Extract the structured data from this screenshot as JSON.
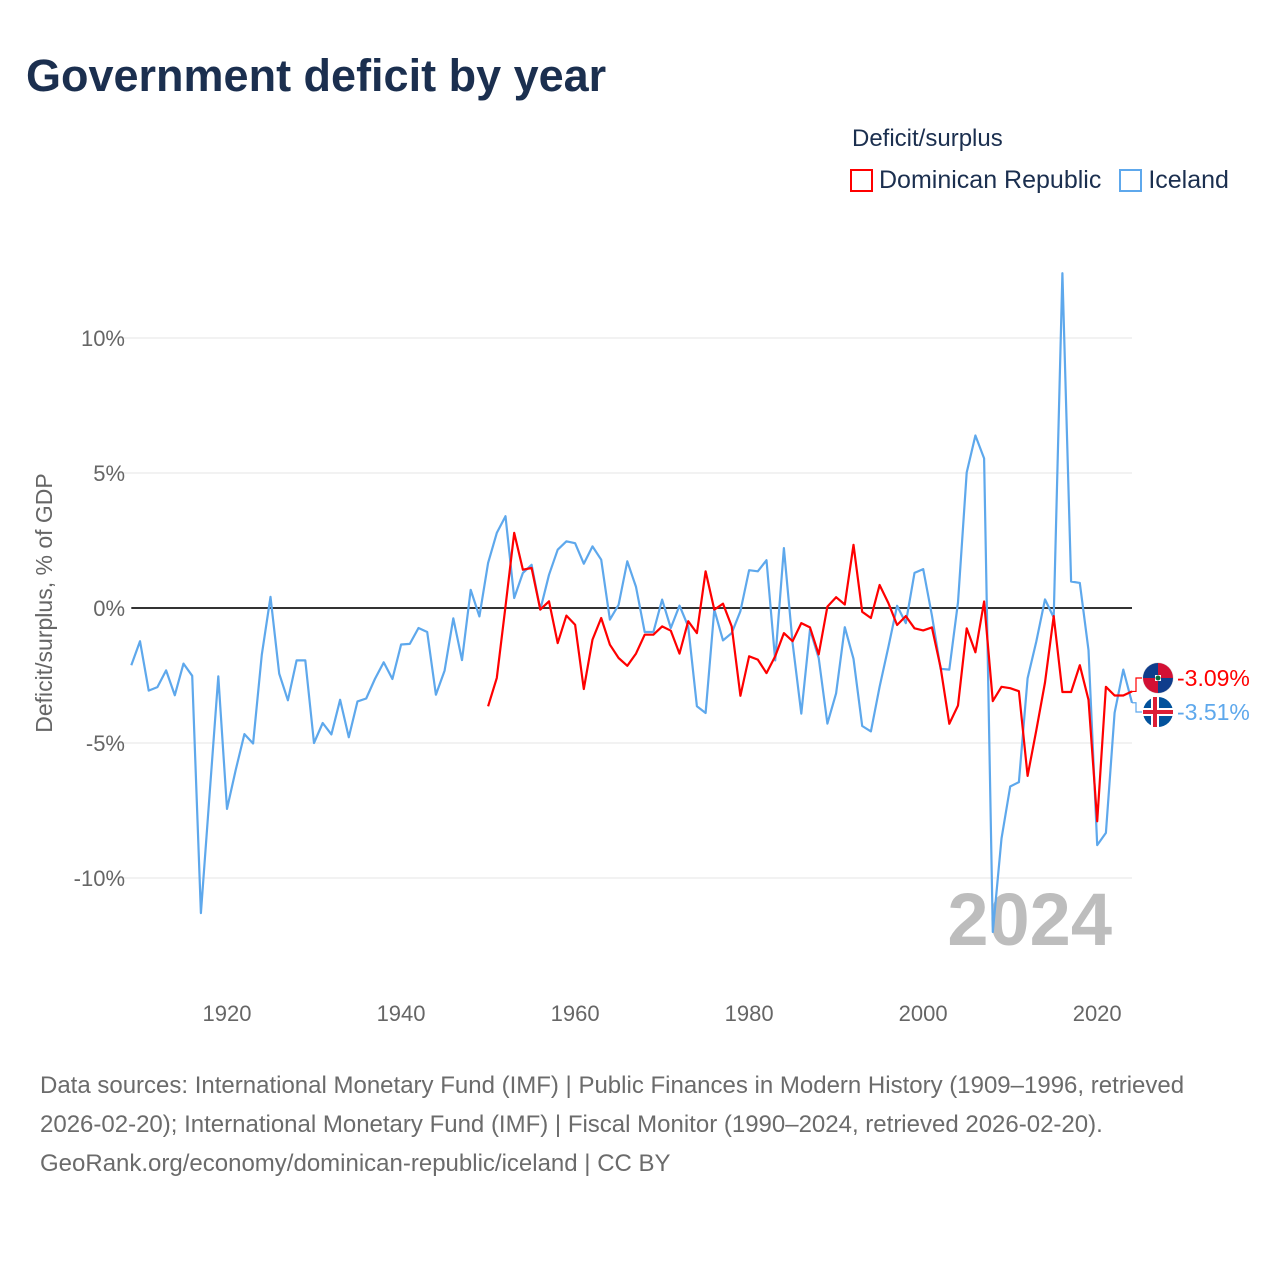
{
  "chart_data": {
    "type": "line",
    "title": "Government deficit by year",
    "xlabel": "",
    "ylabel": "Deficit/surplus, % of GDP",
    "xlim": [
      1909,
      2024
    ],
    "ylim": [
      -12.7,
      12.6
    ],
    "x_ticks": [
      1920,
      1940,
      1960,
      1980,
      2000,
      2020
    ],
    "x_tick_labels": [
      "1920",
      "1940",
      "1960",
      "1980",
      "2000",
      "2020"
    ],
    "y_ticks": [
      10,
      5,
      0,
      -5,
      -10
    ],
    "y_tick_labels": [
      "10%",
      "5%",
      "0%",
      "-5%",
      "-10%"
    ],
    "grid": true,
    "legend_title": "Deficit/surplus",
    "legend_position": "top-right",
    "year_watermark": "2024",
    "series": [
      {
        "name": "Dominican Republic",
        "color": "#ff0000",
        "end_label": "-3.09%",
        "start_year": 1950,
        "values": [
          -3.64,
          -2.59,
          0.06,
          2.78,
          1.42,
          1.48,
          -0.06,
          0.25,
          -1.3,
          -0.28,
          -0.62,
          -3.0,
          -1.17,
          -0.37,
          -1.36,
          -1.85,
          -2.14,
          -1.69,
          -0.99,
          -0.99,
          -0.68,
          -0.84,
          -1.69,
          -0.49,
          -0.93,
          1.36,
          -0.06,
          0.16,
          -0.68,
          -3.25,
          -1.79,
          -1.91,
          -2.41,
          -1.79,
          -0.93,
          -1.23,
          -0.56,
          -0.72,
          -1.72,
          0.05,
          0.4,
          0.13,
          2.34,
          -0.14,
          -0.37,
          0.85,
          0.18,
          -0.63,
          -0.3,
          -0.75,
          -0.83,
          -0.72,
          -2.2,
          -4.29,
          -3.61,
          -0.75,
          -1.64,
          0.24,
          -3.45,
          -2.92,
          -2.97,
          -3.08,
          -6.22,
          -4.53,
          -2.76,
          -0.3,
          -3.11,
          -3.11,
          -2.12,
          -3.4,
          -7.9,
          -2.92,
          -3.24,
          -3.24,
          -3.09
        ]
      },
      {
        "name": "Iceland",
        "color": "#5ea8ec",
        "end_label": "-3.51%",
        "start_year": 1909,
        "values": [
          -2.12,
          -1.23,
          -3.06,
          -2.93,
          -2.31,
          -3.23,
          -2.06,
          -2.51,
          -11.3,
          -6.9,
          -2.53,
          -7.44,
          -6.0,
          -4.67,
          -5.02,
          -1.73,
          0.41,
          -2.43,
          -3.42,
          -1.94,
          -1.94,
          -5.0,
          -4.26,
          -4.68,
          -3.4,
          -4.79,
          -3.46,
          -3.35,
          -2.63,
          -2.01,
          -2.63,
          -1.35,
          -1.33,
          -0.74,
          -0.89,
          -3.21,
          -2.32,
          -0.38,
          -1.93,
          0.67,
          -0.31,
          1.67,
          2.78,
          3.4,
          0.37,
          1.3,
          1.6,
          -0.06,
          1.23,
          2.16,
          2.47,
          2.4,
          1.64,
          2.28,
          1.79,
          -0.43,
          0.12,
          1.73,
          0.78,
          -0.89,
          -0.89,
          0.31,
          -0.74,
          0.09,
          -0.68,
          -3.64,
          -3.89,
          -0.06,
          -1.2,
          -0.93,
          -0.12,
          1.4,
          1.36,
          1.77,
          -1.94,
          2.22,
          -1.3,
          -3.91,
          -0.8,
          -1.85,
          -4.28,
          -3.16,
          -0.71,
          -1.88,
          -4.37,
          -4.57,
          -2.92,
          -1.44,
          0.08,
          -0.56,
          1.3,
          1.44,
          -0.27,
          -2.25,
          -2.28,
          0.21,
          5.02,
          6.39,
          5.54,
          -12.0,
          -8.54,
          -6.61,
          -6.45,
          -2.6,
          -1.24,
          0.32,
          -0.35,
          12.4,
          0.98,
          0.93,
          -1.56,
          -8.78,
          -8.33,
          -3.88,
          -2.28,
          -3.51
        ]
      }
    ]
  },
  "footer": {
    "sources": "Data sources: International Monetary Fund (IMF) | Public Finances in Modern History (1909–1996, retrieved 2026-02-20); International Monetary Fund (IMF) | Fiscal Monitor (1990–2024, retrieved 2026-02-20).",
    "credit": "GeoRank.org/economy/dominican-republic/iceland | CC BY"
  }
}
